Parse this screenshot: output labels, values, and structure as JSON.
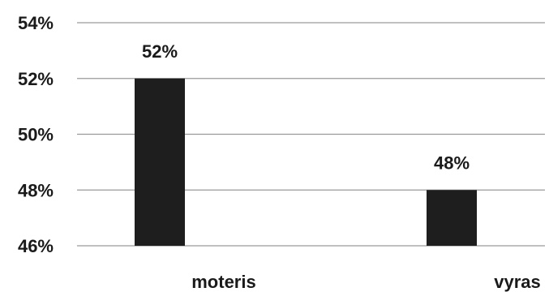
{
  "chart_data": {
    "type": "bar",
    "title": "",
    "xlabel": "",
    "ylabel": "",
    "categories": [
      "moteris",
      "vyras"
    ],
    "values": [
      52,
      48
    ],
    "data_labels": [
      "52%",
      "48%"
    ],
    "ylim": [
      46,
      54
    ],
    "yticks": [
      46,
      48,
      50,
      52,
      54
    ],
    "ytick_labels": [
      "46%",
      "48%",
      "50%",
      "52%",
      "54%"
    ],
    "grid": true,
    "legend": "none",
    "colors": {
      "bar": "#1e1e1e",
      "grid": "#9a9a9a",
      "text": "#1a1a1a"
    }
  }
}
